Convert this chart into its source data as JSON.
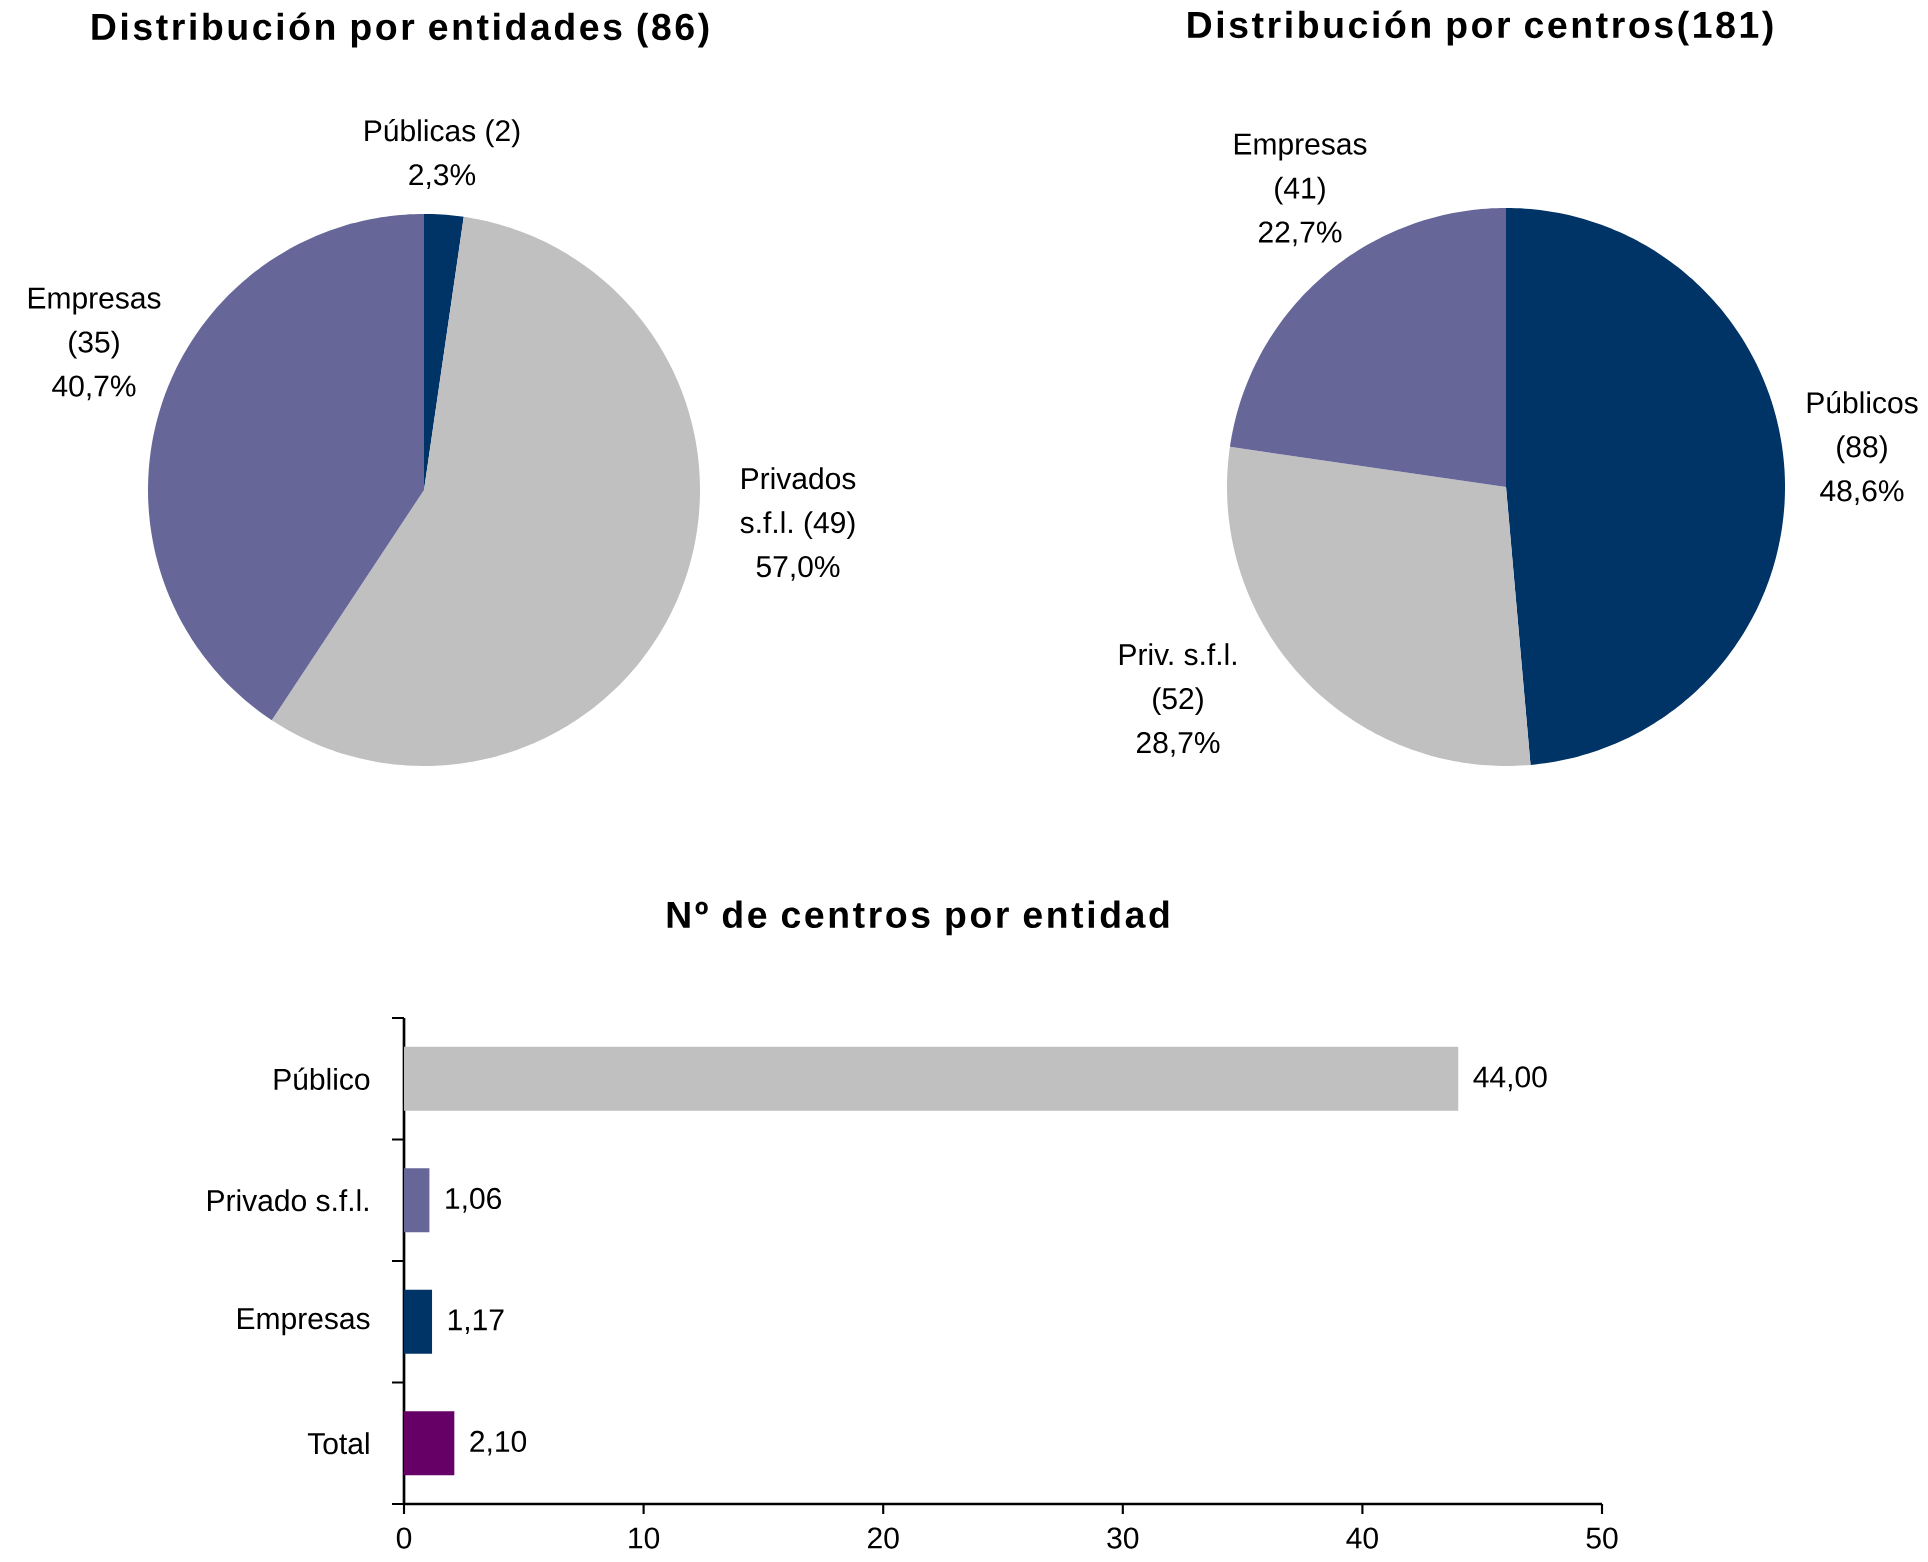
{
  "chart_data": [
    {
      "type": "pie",
      "title": "Distribución por entidades (86)",
      "categories": [
        "Públicas (2)",
        "Privados s.f.l. (49)",
        "Empresas (35)"
      ],
      "values": [
        2.3,
        57.0,
        40.7
      ],
      "value_labels": [
        "2,3%",
        "57,0%",
        "40,7%"
      ],
      "colors": [
        "#003366",
        "#c0c0c0",
        "#666699"
      ]
    },
    {
      "type": "pie",
      "title": "Distribución por centros(181)",
      "categories": [
        "Públicos (88)",
        "Priv. s.f.l. (52)",
        "Empresas (41)"
      ],
      "values": [
        48.6,
        28.7,
        22.7
      ],
      "value_labels": [
        "48,6%",
        "28,7%",
        "22,7%"
      ],
      "colors": [
        "#003366",
        "#c0c0c0",
        "#666699"
      ]
    },
    {
      "type": "bar",
      "orientation": "horizontal",
      "title": "Nº de centros por entidad",
      "categories": [
        "Público",
        "Privado s.f.l.",
        "Empresas",
        "Total"
      ],
      "values": [
        44.0,
        1.06,
        1.17,
        2.1
      ],
      "value_labels": [
        "44,00",
        "1,06",
        "1,17",
        "2,10"
      ],
      "colors": [
        "#c0c0c0",
        "#666699",
        "#003366",
        "#660066"
      ],
      "xlim": [
        0,
        50
      ],
      "xticks": [
        0,
        10,
        20,
        30,
        40,
        50
      ]
    }
  ]
}
